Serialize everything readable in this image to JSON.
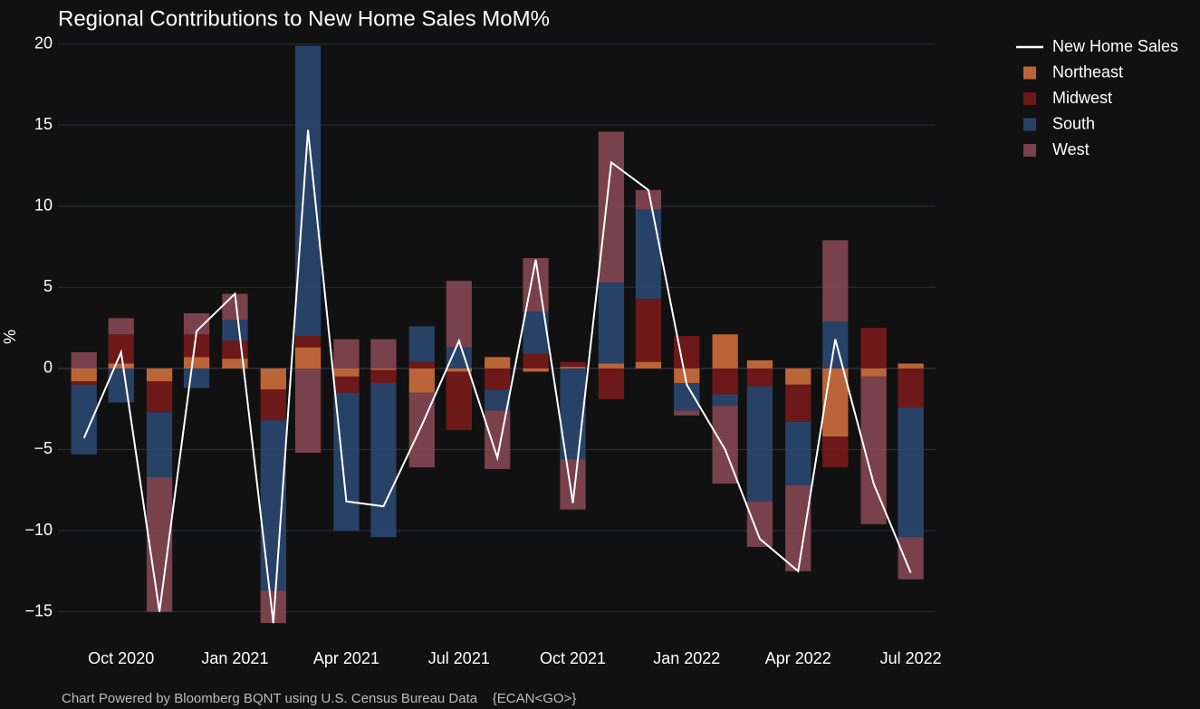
{
  "chart_data": {
    "type": "bar",
    "barmode": "relative",
    "title": "Regional Contributions to New Home Sales MoM%",
    "ylabel": "%",
    "footer": "Chart Powered by Bloomberg BQNT using U.S. Census Bureau Data    {ECAN<GO>}",
    "x": [
      "2020-09",
      "2020-10",
      "2020-11",
      "2020-12",
      "2021-01",
      "2021-02",
      "2021-03",
      "2021-04",
      "2021-05",
      "2021-06",
      "2021-07",
      "2021-08",
      "2021-09",
      "2021-10",
      "2021-11",
      "2021-12",
      "2022-01",
      "2022-02",
      "2022-03",
      "2022-04",
      "2022-05",
      "2022-06",
      "2022-07"
    ],
    "xlim": [
      "2020-08-11",
      "2022-07-21"
    ],
    "xticks": [
      {
        "value": "2020-10",
        "label": "Oct 2020"
      },
      {
        "value": "2021-01",
        "label": "Jan 2021"
      },
      {
        "value": "2021-04",
        "label": "Apr 2021"
      },
      {
        "value": "2021-07",
        "label": "Jul 2021"
      },
      {
        "value": "2021-10",
        "label": "Oct 2021"
      },
      {
        "value": "2022-01",
        "label": "Jan 2022"
      },
      {
        "value": "2022-04",
        "label": "Apr 2022"
      },
      {
        "value": "2022-07",
        "label": "Jul 2022"
      }
    ],
    "ylim": [
      -17.2,
      20.2
    ],
    "yticks": [
      {
        "value": -15,
        "label": "−15"
      },
      {
        "value": -10,
        "label": "−10"
      },
      {
        "value": -5,
        "label": "−5"
      },
      0,
      5,
      10,
      15,
      20
    ],
    "grid": true,
    "legend": "outside-right",
    "series": [
      {
        "name": "New Home Sales",
        "type": "line",
        "color": "#ffffff",
        "values": [
          -4.3,
          1.0,
          -15.0,
          2.3,
          4.6,
          -15.7,
          14.7,
          -8.2,
          -8.5,
          -3.5,
          1.7,
          -5.5,
          6.7,
          -8.3,
          12.7,
          11.0,
          -1.0,
          -5.0,
          -10.5,
          -12.5,
          1.8,
          -7.1,
          -12.6
        ]
      },
      {
        "name": "Northeast",
        "type": "bar",
        "color": "#d9733e",
        "values": [
          -0.8,
          0.3,
          -0.8,
          0.7,
          0.6,
          -1.3,
          1.3,
          -0.5,
          -0.1,
          -1.5,
          -0.2,
          0.7,
          -0.2,
          0.1,
          0.3,
          0.4,
          -0.9,
          2.1,
          0.5,
          -1.0,
          -4.2,
          -0.5,
          0.3
        ]
      },
      {
        "name": "Midwest",
        "type": "bar",
        "color": "#7e1b1b",
        "values": [
          -0.2,
          1.8,
          -1.9,
          1.4,
          1.1,
          -1.9,
          0.7,
          -1.0,
          -0.8,
          0.4,
          -3.6,
          -1.3,
          0.9,
          0.3,
          -1.9,
          3.9,
          2.0,
          -1.6,
          -1.1,
          -2.3,
          -1.9,
          2.5,
          -2.4
        ]
      },
      {
        "name": "South",
        "type": "bar",
        "color": "#2d4a77",
        "values": [
          -4.3,
          -2.1,
          -4.0,
          -1.2,
          1.3,
          -10.5,
          17.9,
          -8.5,
          -9.5,
          2.2,
          1.3,
          -1.3,
          2.6,
          -5.6,
          5.0,
          5.5,
          -1.7,
          -0.7,
          -7.1,
          -3.9,
          2.9,
          0,
          -8.0
        ]
      },
      {
        "name": "West",
        "type": "bar",
        "color": "#8b4a56",
        "values": [
          1.0,
          1.0,
          -8.3,
          1.3,
          1.6,
          -2.0,
          -5.2,
          1.8,
          1.8,
          -4.6,
          4.1,
          -3.6,
          3.3,
          -3.1,
          9.3,
          1.2,
          -0.3,
          -4.8,
          -2.8,
          -5.3,
          5.0,
          -9.1,
          -2.6
        ]
      }
    ]
  }
}
